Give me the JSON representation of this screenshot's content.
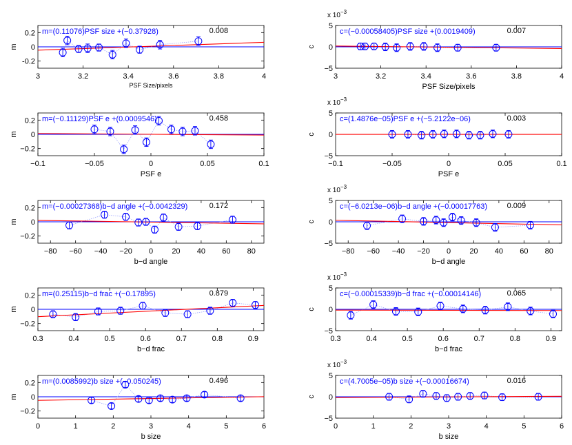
{
  "chart_data": [
    {
      "id": "m-psfsize",
      "type": "scatter",
      "col": 0,
      "row": 0,
      "ylabel": "m",
      "xlabel": "PSF Size/pixels",
      "xlabel_small": true,
      "xlim": [
        3,
        4
      ],
      "xticks": [
        3,
        3.2,
        3.4,
        3.6,
        3.8,
        4
      ],
      "xtick_labels": [
        "3",
        "3.2",
        "3.4",
        "3.6",
        "3.8",
        "4"
      ],
      "ylim": [
        -0.3,
        0.3
      ],
      "yticks": [
        0.2,
        0,
        -0.2
      ],
      "ytick_labels": [
        "0.2",
        "0",
        "-0.2"
      ],
      "sci_multiplier": "",
      "annotation": "m=(0.11076)PSF size +(−0.37928)",
      "p_value": "0.008",
      "fit": {
        "slope": 0.11076,
        "intercept": -0.37928
      },
      "points": [
        {
          "x": 3.11,
          "y": -0.08,
          "err": 0.06
        },
        {
          "x": 3.13,
          "y": 0.09,
          "err": 0.06
        },
        {
          "x": 3.18,
          "y": -0.03,
          "err": 0.05
        },
        {
          "x": 3.22,
          "y": -0.02,
          "err": 0.06
        },
        {
          "x": 3.27,
          "y": -0.01,
          "err": 0.05
        },
        {
          "x": 3.33,
          "y": -0.11,
          "err": 0.06
        },
        {
          "x": 3.39,
          "y": 0.05,
          "err": 0.06
        },
        {
          "x": 3.45,
          "y": -0.04,
          "err": 0.05
        },
        {
          "x": 3.54,
          "y": 0.03,
          "err": 0.06
        },
        {
          "x": 3.71,
          "y": 0.08,
          "err": 0.06
        }
      ]
    },
    {
      "id": "c-psfsize",
      "type": "scatter",
      "col": 1,
      "row": 0,
      "ylabel": "c",
      "xlabel": "PSF Size/pixels",
      "xlabel_small": false,
      "xlim": [
        3,
        4
      ],
      "xticks": [
        3,
        3.2,
        3.4,
        3.6,
        3.8,
        4
      ],
      "xtick_labels": [
        "3",
        "3.2",
        "3.4",
        "3.6",
        "3.8",
        "4"
      ],
      "ylim": [
        -0.005,
        0.005
      ],
      "yticks": [
        0.005,
        0,
        -0.005
      ],
      "ytick_labels": [
        "5",
        "0",
        "−5"
      ],
      "sci_multiplier": "x 10",
      "sci_exponent": "−3",
      "annotation": "c=(−0.00058405)PSF size +(0.0019409)",
      "p_value": "0.007",
      "fit": {
        "slope": -0.00058405,
        "intercept": 0.0019409
      },
      "points": [
        {
          "x": 3.11,
          "y": 0.0001,
          "err": 0.0008
        },
        {
          "x": 3.13,
          "y": 0.0001,
          "err": 0.0008
        },
        {
          "x": 3.17,
          "y": 0.0001,
          "err": 0.0008
        },
        {
          "x": 3.22,
          "y": 0.0,
          "err": 0.0009
        },
        {
          "x": 3.27,
          "y": -0.0002,
          "err": 0.0009
        },
        {
          "x": 3.33,
          "y": 0.0001,
          "err": 0.0009
        },
        {
          "x": 3.39,
          "y": 0.0001,
          "err": 0.0009
        },
        {
          "x": 3.45,
          "y": -0.0002,
          "err": 0.0009
        },
        {
          "x": 3.54,
          "y": -0.0002,
          "err": 0.0008
        },
        {
          "x": 3.71,
          "y": -0.0002,
          "err": 0.0008
        }
      ]
    },
    {
      "id": "m-psfe",
      "type": "scatter",
      "col": 0,
      "row": 1,
      "ylabel": "m",
      "xlabel": "PSF e",
      "xlabel_small": false,
      "xlim": [
        -0.1,
        0.1
      ],
      "xticks": [
        -0.1,
        -0.05,
        0,
        0.05,
        0.1
      ],
      "xtick_labels": [
        "−0.1",
        "−0.05",
        "0",
        "0.05",
        "0.1"
      ],
      "ylim": [
        -0.3,
        0.3
      ],
      "yticks": [
        0.2,
        0,
        -0.2
      ],
      "ytick_labels": [
        "0.2",
        "0",
        "−0.2"
      ],
      "sci_multiplier": "",
      "annotation": "m=(−0.11129)PSF e +(0.0009546)",
      "p_value": "0.458",
      "fit": {
        "slope": -0.11129,
        "intercept": 0.0009546
      },
      "points": [
        {
          "x": -0.05,
          "y": 0.07,
          "err": 0.06
        },
        {
          "x": -0.036,
          "y": 0.04,
          "err": 0.06
        },
        {
          "x": -0.024,
          "y": -0.21,
          "err": 0.06
        },
        {
          "x": -0.014,
          "y": 0.06,
          "err": 0.06
        },
        {
          "x": -0.004,
          "y": -0.11,
          "err": 0.06
        },
        {
          "x": 0.007,
          "y": 0.19,
          "err": 0.06
        },
        {
          "x": 0.018,
          "y": 0.07,
          "err": 0.06
        },
        {
          "x": 0.028,
          "y": 0.04,
          "err": 0.06
        },
        {
          "x": 0.039,
          "y": 0.05,
          "err": 0.06
        },
        {
          "x": 0.053,
          "y": -0.14,
          "err": 0.06
        }
      ]
    },
    {
      "id": "c-psfe",
      "type": "scatter",
      "col": 1,
      "row": 1,
      "ylabel": "c",
      "xlabel": "PSF e",
      "xlabel_small": false,
      "xlim": [
        -0.1,
        0.1
      ],
      "xticks": [
        -0.1,
        -0.05,
        0,
        0.05,
        0.1
      ],
      "xtick_labels": [
        "−0.1",
        "−0.05",
        "0",
        "0.05",
        "0.1"
      ],
      "ylim": [
        -0.005,
        0.005
      ],
      "yticks": [
        0.005,
        0,
        -0.005
      ],
      "ytick_labels": [
        "5",
        "0",
        "−5"
      ],
      "sci_multiplier": "x 10",
      "sci_exponent": "−3",
      "annotation": "c=(1.4876e−05)PSF e +(−5.2122e−06)",
      "p_value": "0.003",
      "fit": {
        "slope": 1.4876e-05,
        "intercept": -5.2122e-06
      },
      "points": [
        {
          "x": -0.05,
          "y": 0.0,
          "err": 0.0009
        },
        {
          "x": -0.036,
          "y": 0.0,
          "err": 0.0009
        },
        {
          "x": -0.024,
          "y": -0.0002,
          "err": 0.0009
        },
        {
          "x": -0.014,
          "y": 0.0,
          "err": 0.0009
        },
        {
          "x": -0.004,
          "y": 0.0001,
          "err": 0.0009
        },
        {
          "x": 0.007,
          "y": 0.0001,
          "err": 0.0009
        },
        {
          "x": 0.018,
          "y": -0.0002,
          "err": 0.0009
        },
        {
          "x": 0.028,
          "y": -0.0002,
          "err": 0.0009
        },
        {
          "x": 0.039,
          "y": 0.0001,
          "err": 0.0009
        },
        {
          "x": 0.053,
          "y": 0.0,
          "err": 0.0009
        }
      ]
    },
    {
      "id": "m-bdangle",
      "type": "scatter",
      "col": 0,
      "row": 2,
      "ylabel": "m",
      "xlabel": "b−d angle",
      "xlabel_small": false,
      "xlim": [
        -90,
        90
      ],
      "xticks": [
        -80,
        -60,
        -40,
        -20,
        0,
        20,
        40,
        60,
        80
      ],
      "xtick_labels": [
        "−80",
        "−60",
        "−40",
        "−20",
        "0",
        "20",
        "40",
        "60",
        "80"
      ],
      "ylim": [
        -0.3,
        0.3
      ],
      "yticks": [
        0.2,
        0,
        -0.2
      ],
      "ytick_labels": [
        "0.2",
        "0",
        "−0.2"
      ],
      "sci_multiplier": "",
      "annotation": "m=(−0.00027368)b−d angle +(−0.0042329)",
      "p_value": "0.172",
      "fit": {
        "slope": -0.00027368,
        "intercept": -0.0042329
      },
      "points": [
        {
          "x": -65,
          "y": -0.05,
          "err": 0.05
        },
        {
          "x": -37,
          "y": 0.1,
          "err": 0.05
        },
        {
          "x": -20,
          "y": 0.07,
          "err": 0.05
        },
        {
          "x": -10,
          "y": -0.01,
          "err": 0.05
        },
        {
          "x": -4,
          "y": 0.0,
          "err": 0.05
        },
        {
          "x": 3,
          "y": -0.11,
          "err": 0.05
        },
        {
          "x": 10,
          "y": 0.06,
          "err": 0.05
        },
        {
          "x": 22,
          "y": -0.07,
          "err": 0.05
        },
        {
          "x": 37,
          "y": -0.06,
          "err": 0.05
        },
        {
          "x": 65,
          "y": 0.03,
          "err": 0.05
        }
      ]
    },
    {
      "id": "c-bdangle",
      "type": "scatter",
      "col": 1,
      "row": 2,
      "ylabel": "c",
      "xlabel": "b−d angle",
      "xlabel_small": false,
      "xlim": [
        -90,
        90
      ],
      "xticks": [
        -80,
        -60,
        -40,
        -20,
        0,
        20,
        40,
        60,
        80
      ],
      "xtick_labels": [
        "−80",
        "−60",
        "−40",
        "−20",
        "0",
        "20",
        "40",
        "60",
        "80"
      ],
      "ylim": [
        -0.005,
        0.005
      ],
      "yticks": [
        0.005,
        0,
        -0.005
      ],
      "ytick_labels": [
        "5",
        "0",
        "−5"
      ],
      "sci_multiplier": "x 10",
      "sci_exponent": "−3",
      "annotation": "c=(−6.0213e−06)b−d angle +(−0.00017763)",
      "p_value": "0.009",
      "fit": {
        "slope": -6.0213e-06,
        "intercept": -0.00017763
      },
      "points": [
        {
          "x": -65,
          "y": -0.0009,
          "err": 0.0009
        },
        {
          "x": -37,
          "y": 0.0007,
          "err": 0.0009
        },
        {
          "x": -20,
          "y": 0.0001,
          "err": 0.0009
        },
        {
          "x": -10,
          "y": 0.0004,
          "err": 0.0009
        },
        {
          "x": -4,
          "y": -0.0002,
          "err": 0.0009
        },
        {
          "x": 3,
          "y": 0.0011,
          "err": 0.0009
        },
        {
          "x": 10,
          "y": 0.0003,
          "err": 0.0009
        },
        {
          "x": 22,
          "y": -0.0002,
          "err": 0.0009
        },
        {
          "x": 37,
          "y": -0.0013,
          "err": 0.0009
        },
        {
          "x": 65,
          "y": -0.0008,
          "err": 0.0009
        }
      ]
    },
    {
      "id": "m-bdfrac",
      "type": "scatter",
      "col": 0,
      "row": 3,
      "ylabel": "m",
      "xlabel": "b−d frac",
      "xlabel_small": false,
      "xlim": [
        0.3,
        0.93
      ],
      "xticks": [
        0.3,
        0.4,
        0.5,
        0.6,
        0.7,
        0.8,
        0.9
      ],
      "xtick_labels": [
        "0.3",
        "0.4",
        "0.5",
        "0.6",
        "0.7",
        "0.8",
        "0.9"
      ],
      "ylim": [
        -0.3,
        0.3
      ],
      "yticks": [
        0.2,
        0,
        -0.2
      ],
      "ytick_labels": [
        "0.2",
        "0",
        "−0.2"
      ],
      "sci_multiplier": "",
      "annotation": "m=(0.25115)b−d frac +(−0.17895)",
      "p_value": "0.879",
      "fit": {
        "slope": 0.25115,
        "intercept": -0.17895
      },
      "points": [
        {
          "x": 0.342,
          "y": -0.07,
          "err": 0.05
        },
        {
          "x": 0.405,
          "y": -0.11,
          "err": 0.05
        },
        {
          "x": 0.468,
          "y": -0.03,
          "err": 0.05
        },
        {
          "x": 0.53,
          "y": -0.02,
          "err": 0.05
        },
        {
          "x": 0.592,
          "y": 0.05,
          "err": 0.05
        },
        {
          "x": 0.655,
          "y": -0.05,
          "err": 0.05
        },
        {
          "x": 0.717,
          "y": -0.07,
          "err": 0.05
        },
        {
          "x": 0.78,
          "y": -0.02,
          "err": 0.05
        },
        {
          "x": 0.843,
          "y": 0.09,
          "err": 0.05
        },
        {
          "x": 0.906,
          "y": 0.06,
          "err": 0.05
        }
      ]
    },
    {
      "id": "c-bdfrac",
      "type": "scatter",
      "col": 1,
      "row": 3,
      "ylabel": "c",
      "xlabel": "b−d frac",
      "xlabel_small": false,
      "xlim": [
        0.3,
        0.93
      ],
      "xticks": [
        0.3,
        0.4,
        0.5,
        0.6,
        0.7,
        0.8,
        0.9
      ],
      "xtick_labels": [
        "0.3",
        "0.4",
        "0.5",
        "0.6",
        "0.7",
        "0.8",
        "0.9"
      ],
      "ylim": [
        -0.005,
        0.005
      ],
      "yticks": [
        0.005,
        0,
        -0.005
      ],
      "ytick_labels": [
        "5",
        "0",
        "−5"
      ],
      "sci_multiplier": "x 10",
      "sci_exponent": "−3",
      "annotation": "c=(−0.00015339)b−d frac +(−0.00014146)",
      "p_value": "0.065",
      "fit": {
        "slope": -0.00015339,
        "intercept": -0.00014146
      },
      "points": [
        {
          "x": 0.342,
          "y": -0.0014,
          "err": 0.0009
        },
        {
          "x": 0.405,
          "y": 0.0011,
          "err": 0.0009
        },
        {
          "x": 0.468,
          "y": -0.0005,
          "err": 0.0009
        },
        {
          "x": 0.53,
          "y": -0.0006,
          "err": 0.0009
        },
        {
          "x": 0.592,
          "y": 0.0008,
          "err": 0.0009
        },
        {
          "x": 0.655,
          "y": 0.0001,
          "err": 0.0009
        },
        {
          "x": 0.717,
          "y": -0.0002,
          "err": 0.0009
        },
        {
          "x": 0.78,
          "y": 0.0006,
          "err": 0.0009
        },
        {
          "x": 0.843,
          "y": -0.0004,
          "err": 0.0009
        },
        {
          "x": 0.906,
          "y": -0.0011,
          "err": 0.0009
        }
      ]
    },
    {
      "id": "m-bsize",
      "type": "scatter",
      "col": 0,
      "row": 4,
      "ylabel": "m",
      "xlabel": "b size",
      "xlabel_small": false,
      "xlim": [
        0,
        6
      ],
      "xticks": [
        0,
        1,
        2,
        3,
        4,
        5,
        6
      ],
      "xtick_labels": [
        "0",
        "1",
        "2",
        "3",
        "4",
        "5",
        "6"
      ],
      "ylim": [
        -0.3,
        0.3
      ],
      "yticks": [
        0.2,
        0,
        -0.2
      ],
      "ytick_labels": [
        "0.2",
        "0",
        "−0.2"
      ],
      "sci_multiplier": "",
      "annotation": "m=(0.0085992)b size +(−0.050245)",
      "p_value": "0.496",
      "fit": {
        "slope": 0.0085992,
        "intercept": -0.050245
      },
      "points": [
        {
          "x": 1.42,
          "y": -0.05,
          "err": 0.04
        },
        {
          "x": 1.95,
          "y": -0.13,
          "err": 0.04
        },
        {
          "x": 2.32,
          "y": 0.17,
          "err": 0.04
        },
        {
          "x": 2.67,
          "y": -0.03,
          "err": 0.04
        },
        {
          "x": 2.95,
          "y": -0.05,
          "err": 0.04
        },
        {
          "x": 3.25,
          "y": -0.02,
          "err": 0.04
        },
        {
          "x": 3.57,
          "y": -0.04,
          "err": 0.04
        },
        {
          "x": 3.95,
          "y": -0.02,
          "err": 0.04
        },
        {
          "x": 4.42,
          "y": 0.03,
          "err": 0.04
        },
        {
          "x": 5.38,
          "y": -0.02,
          "err": 0.04
        }
      ]
    },
    {
      "id": "c-bsize",
      "type": "scatter",
      "col": 1,
      "row": 4,
      "ylabel": "c",
      "xlabel": "b size",
      "xlabel_small": false,
      "xlim": [
        0,
        6
      ],
      "xticks": [
        0,
        1,
        2,
        3,
        4,
        5,
        6
      ],
      "xtick_labels": [
        "0",
        "1",
        "2",
        "3",
        "4",
        "5",
        "6"
      ],
      "ylim": [
        -0.005,
        0.005
      ],
      "yticks": [
        0.005,
        0,
        -0.005
      ],
      "ytick_labels": [
        "5",
        "0",
        "−5"
      ],
      "sci_multiplier": "x 10",
      "sci_exponent": "−3",
      "annotation": "c=(4.7005e−05)b size +(−0.00016674)",
      "p_value": "0.016",
      "fit": {
        "slope": 4.7005e-05,
        "intercept": -0.00016674
      },
      "points": [
        {
          "x": 1.42,
          "y": 0.0,
          "err": 0.0008
        },
        {
          "x": 1.95,
          "y": -0.0006,
          "err": 0.0008
        },
        {
          "x": 2.32,
          "y": 0.0007,
          "err": 0.0008
        },
        {
          "x": 2.67,
          "y": 0.0002,
          "err": 0.0008
        },
        {
          "x": 2.95,
          "y": -0.0003,
          "err": 0.0008
        },
        {
          "x": 3.25,
          "y": 0.0,
          "err": 0.0008
        },
        {
          "x": 3.57,
          "y": 0.0002,
          "err": 0.0008
        },
        {
          "x": 3.95,
          "y": 0.0003,
          "err": 0.0008
        },
        {
          "x": 4.42,
          "y": -0.0001,
          "err": 0.0008
        },
        {
          "x": 5.38,
          "y": 0.0,
          "err": 0.0008
        }
      ]
    }
  ],
  "colors": {
    "points": "#0000ff",
    "connector": "#9aa3ff",
    "fit_line": "#ff0000",
    "zero_line": "#0000ff",
    "axis": "#000000"
  }
}
